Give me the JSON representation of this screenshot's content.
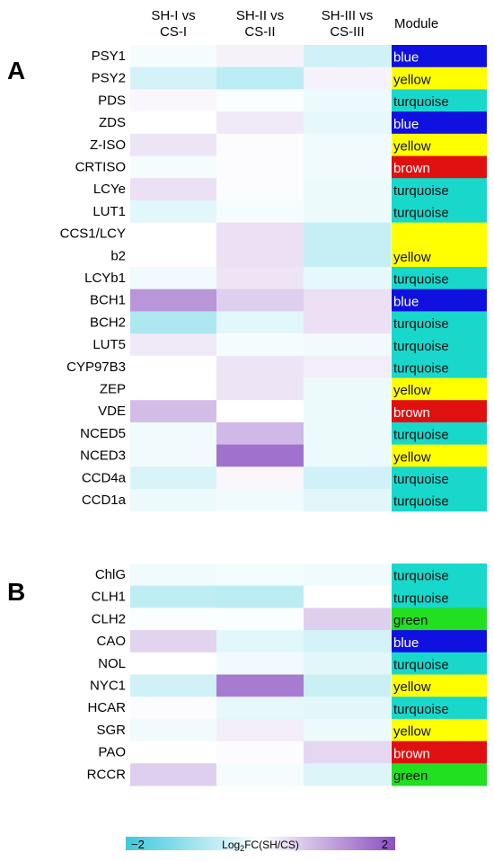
{
  "chart_data": {
    "type": "heatmap",
    "columns": [
      "SH-I vs CS-I",
      "SH-II vs CS-II",
      "SH-III vs CS-III"
    ],
    "column_header_lines": [
      [
        "SH-I vs",
        "CS-I"
      ],
      [
        "SH-II vs",
        "CS-II"
      ],
      [
        "SH-III vs",
        "CS-III"
      ]
    ],
    "module_header": "Module",
    "value_range": [
      -2,
      2
    ],
    "colors": {
      "low": "#3ec8de",
      "mid": "#ffffff",
      "high": "#8a4fc0"
    },
    "module_colors": {
      "blue": "#1010e0",
      "yellow": "#ffff00",
      "turquoise": "#18d8cc",
      "brown": "#e01010",
      "green": "#20e020"
    },
    "panels": [
      {
        "label": "A",
        "rows": [
          {
            "gene": "PSY1",
            "values": [
              -0.1,
              0.15,
              -0.5
            ],
            "module": "blue"
          },
          {
            "gene": "PSY2",
            "values": [
              -0.45,
              -0.7,
              0.15
            ],
            "module": "yellow"
          },
          {
            "gene": "PDS",
            "values": [
              0.1,
              -0.05,
              -0.2
            ],
            "module": "turquoise"
          },
          {
            "gene": "ZDS",
            "values": [
              0.0,
              0.25,
              -0.25
            ],
            "module": "blue"
          },
          {
            "gene": "Z-ISO",
            "values": [
              0.3,
              0.05,
              -0.15
            ],
            "module": "yellow"
          },
          {
            "gene": "CRTISO",
            "values": [
              -0.1,
              0.05,
              -0.15
            ],
            "module": "brown"
          },
          {
            "gene": "LCYe",
            "values": [
              0.35,
              0.05,
              -0.2
            ],
            "module": "turquoise"
          },
          {
            "gene": "LUT1",
            "values": [
              -0.3,
              -0.1,
              -0.2
            ],
            "module": "turquoise"
          },
          {
            "gene": "CCS1/LCYb2",
            "label_lines": [
              "CCS1/LCY",
              "b2"
            ],
            "values": [
              0.0,
              0.35,
              -0.6
            ],
            "module": "yellow"
          },
          {
            "gene": "LCYb1",
            "values": [
              -0.15,
              0.3,
              -0.25
            ],
            "module": "turquoise"
          },
          {
            "gene": "BCH1",
            "values": [
              1.2,
              0.55,
              0.35
            ],
            "module": "blue"
          },
          {
            "gene": "BCH2",
            "values": [
              -0.85,
              -0.3,
              0.35
            ],
            "module": "turquoise"
          },
          {
            "gene": "LUT5",
            "values": [
              0.25,
              -0.1,
              -0.15
            ],
            "module": "turquoise"
          },
          {
            "gene": "CYP97B3",
            "values": [
              0.0,
              0.3,
              0.2
            ],
            "module": "turquoise"
          },
          {
            "gene": "ZEP",
            "values": [
              0.0,
              0.3,
              -0.2
            ],
            "module": "yellow"
          },
          {
            "gene": "VDE",
            "values": [
              0.75,
              0.0,
              -0.2
            ],
            "module": "brown"
          },
          {
            "gene": "NCED5",
            "values": [
              -0.15,
              0.8,
              -0.2
            ],
            "module": "turquoise"
          },
          {
            "gene": "NCED3",
            "values": [
              -0.15,
              1.6,
              -0.2
            ],
            "module": "yellow"
          },
          {
            "gene": "CCD4a",
            "values": [
              -0.4,
              0.1,
              -0.5
            ],
            "module": "turquoise"
          },
          {
            "gene": "CCD1a",
            "values": [
              -0.2,
              -0.15,
              -0.3
            ],
            "module": "turquoise"
          }
        ]
      },
      {
        "label": "B",
        "rows": [
          {
            "gene": "ChlG",
            "values": [
              -0.15,
              -0.1,
              -0.15
            ],
            "module": "turquoise"
          },
          {
            "gene": "CLH1",
            "values": [
              -0.65,
              -0.7,
              0.0
            ],
            "module": "turquoise"
          },
          {
            "gene": "CLH2",
            "values": [
              -0.05,
              -0.05,
              0.55
            ],
            "module": "green"
          },
          {
            "gene": "CAO",
            "values": [
              0.5,
              -0.3,
              -0.45
            ],
            "module": "blue"
          },
          {
            "gene": "NOL",
            "values": [
              0.0,
              -0.15,
              -0.3
            ],
            "module": "turquoise"
          },
          {
            "gene": "NYC1",
            "values": [
              -0.5,
              1.5,
              -0.55
            ],
            "module": "yellow"
          },
          {
            "gene": "HCAR",
            "values": [
              0.05,
              -0.25,
              -0.3
            ],
            "module": "turquoise"
          },
          {
            "gene": "SGR",
            "values": [
              -0.15,
              0.2,
              -0.2
            ],
            "module": "yellow"
          },
          {
            "gene": "PAO",
            "values": [
              0.0,
              0.05,
              0.45
            ],
            "module": "brown"
          },
          {
            "gene": "RCCR",
            "values": [
              0.55,
              -0.1,
              -0.35
            ],
            "module": "green"
          }
        ]
      }
    ],
    "legend": {
      "min_label": "−2",
      "max_label": "2",
      "label": "Log",
      "label_sub": "2",
      "label_rest": "FC(SH/CS)"
    }
  }
}
